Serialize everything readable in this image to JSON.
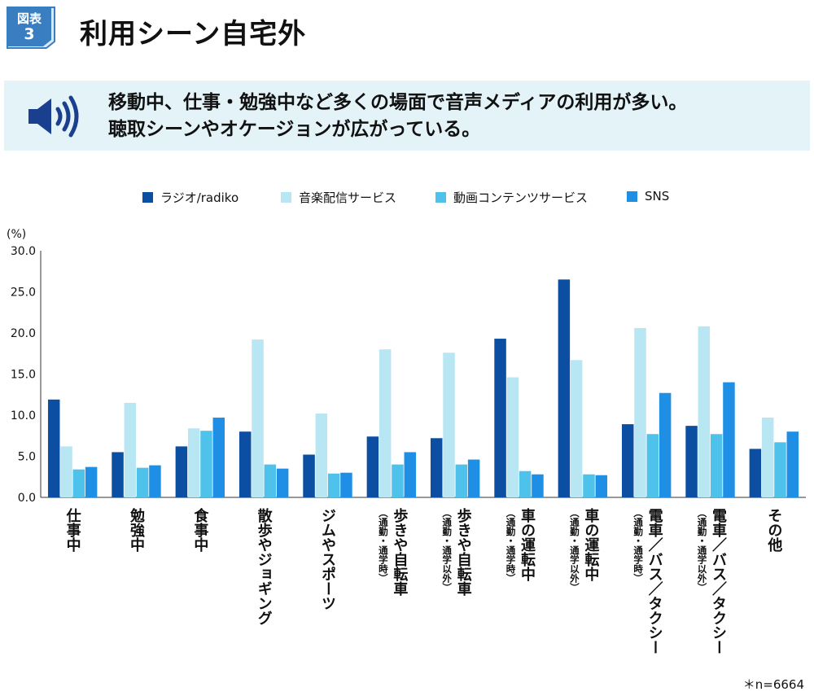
{
  "header": {
    "badge_top": "図表",
    "badge_num": "3",
    "title": "利用シーン自宅外"
  },
  "banner": {
    "icon": "speaker-icon",
    "line1": "移動中、仕事・勉強中など多くの場面で音声メディアの利用が多い。",
    "line2": "聴取シーンやオケージョンが広がっている。"
  },
  "colors": {
    "badge_bg": "#3a7ec2",
    "banner_bg": "#e3f3f8",
    "icon": "#1b3f8f"
  },
  "footnote": "＊n=6664",
  "chart_data": {
    "type": "bar",
    "ylabel": "(%)",
    "ylim": [
      0,
      30
    ],
    "yticks": [
      "0.0",
      "5.0",
      "10.0",
      "15.0",
      "20.0",
      "25.0",
      "30.0"
    ],
    "grid": false,
    "legend_position": "top",
    "categories": [
      {
        "main": "仕事中",
        "sub": ""
      },
      {
        "main": "勉強中",
        "sub": ""
      },
      {
        "main": "食事中",
        "sub": ""
      },
      {
        "main": "散歩やジョギング",
        "sub": ""
      },
      {
        "main": "ジムやスポーツ",
        "sub": ""
      },
      {
        "main": "歩きや自転車",
        "sub": "（通勤・通学時）"
      },
      {
        "main": "歩きや自転車",
        "sub": "（通勤・通学以外）"
      },
      {
        "main": "車の運転中",
        "sub": "（通勤・通学時）"
      },
      {
        "main": "車の運転中",
        "sub": "（通勤・通学以外）"
      },
      {
        "main": "電車／バス／タクシー",
        "sub": "（通勤・通学時）"
      },
      {
        "main": "電車／バス／タクシー",
        "sub": "（通勤・通学以外）"
      },
      {
        "main": "その他",
        "sub": ""
      }
    ],
    "series": [
      {
        "name": "ラジオ/radiko",
        "color": "#0b4ea2",
        "values": [
          11.9,
          5.5,
          6.2,
          8.0,
          5.2,
          7.4,
          7.2,
          19.3,
          26.5,
          8.9,
          8.7,
          5.9
        ]
      },
      {
        "name": "音楽配信サービス",
        "color": "#b8e6f3",
        "values": [
          6.2,
          11.5,
          8.4,
          19.2,
          10.2,
          18.0,
          17.6,
          14.6,
          16.7,
          20.6,
          20.8,
          9.7
        ]
      },
      {
        "name": "動画コンテンツサービス",
        "color": "#4ec2ea",
        "values": [
          3.4,
          3.6,
          8.1,
          4.0,
          2.9,
          4.0,
          4.0,
          3.2,
          2.8,
          7.7,
          7.7,
          6.7
        ]
      },
      {
        "name": "SNS",
        "color": "#1f8fe6",
        "values": [
          3.7,
          3.9,
          9.7,
          3.5,
          3.0,
          5.5,
          4.6,
          2.8,
          2.7,
          12.7,
          14.0,
          8.0
        ]
      }
    ]
  }
}
